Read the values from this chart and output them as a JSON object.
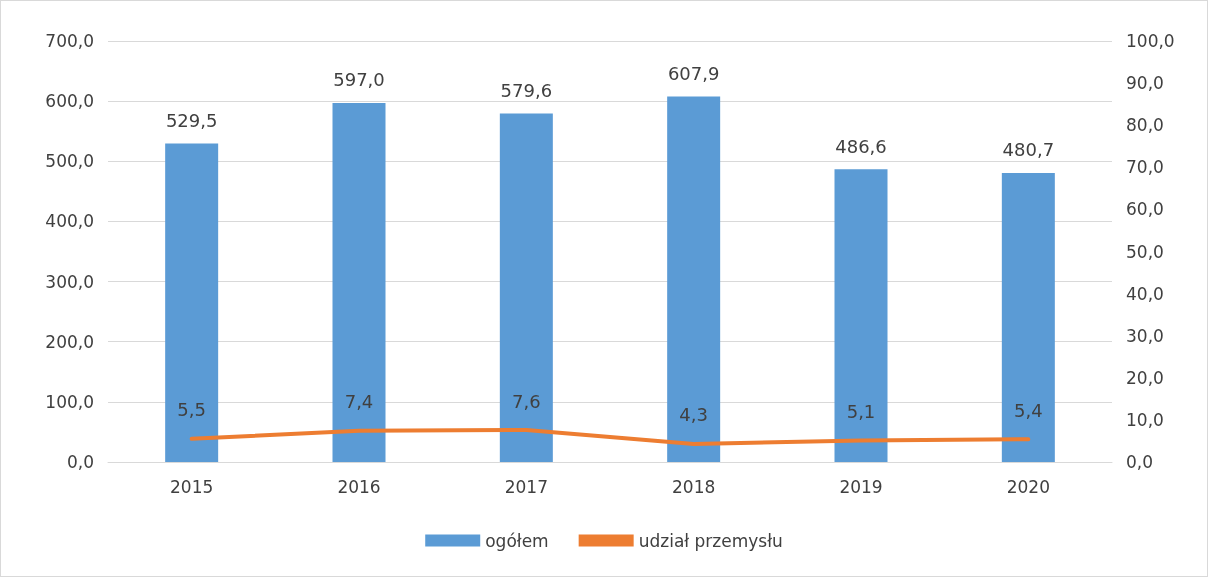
{
  "chart_data": {
    "type": "bar",
    "categories": [
      "2015",
      "2016",
      "2017",
      "2018",
      "2019",
      "2020"
    ],
    "series": [
      {
        "name": "ogółem",
        "color": "#5b9bd5",
        "values": [
          529.5,
          597.0,
          579.6,
          607.9,
          486.6,
          480.7
        ],
        "value_labels": [
          "529,5",
          "597,0",
          "579,6",
          "607,9",
          "486,6",
          "480,7"
        ]
      },
      {
        "name": "udział przemysłu",
        "type": "line",
        "axis": "y2",
        "color": "#ed7d31",
        "values": [
          5.5,
          7.4,
          7.6,
          4.3,
          5.1,
          5.4
        ],
        "value_labels": [
          "5,5",
          "7,4",
          "7,6",
          "4,3",
          "5,1",
          "5,4"
        ]
      }
    ],
    "ylim": [
      0,
      700
    ],
    "yticks": [
      {
        "value": 0,
        "label": "0,0"
      },
      {
        "value": 100,
        "label": "100,0"
      },
      {
        "value": 200,
        "label": "200,0"
      },
      {
        "value": 300,
        "label": "300,0"
      },
      {
        "value": 400,
        "label": "400,0"
      },
      {
        "value": 500,
        "label": "500,0"
      },
      {
        "value": 600,
        "label": "600,0"
      },
      {
        "value": 700,
        "label": "700,0"
      }
    ],
    "y2lim": [
      0,
      100
    ],
    "y2ticks": [
      {
        "value": 0,
        "label": "0,0"
      },
      {
        "value": 10,
        "label": "10,0"
      },
      {
        "value": 20,
        "label": "20,0"
      },
      {
        "value": 30,
        "label": "30,0"
      },
      {
        "value": 40,
        "label": "40,0"
      },
      {
        "value": 50,
        "label": "50,0"
      },
      {
        "value": 60,
        "label": "60,0"
      },
      {
        "value": 70,
        "label": "70,0"
      },
      {
        "value": 80,
        "label": "80,0"
      },
      {
        "value": 90,
        "label": "90,0"
      },
      {
        "value": 100,
        "label": "100,0"
      }
    ],
    "grid": "y",
    "legend": "bottom",
    "marker": "none",
    "line_style": "solid"
  }
}
